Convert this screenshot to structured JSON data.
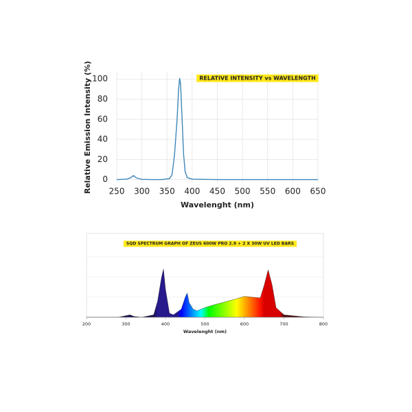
{
  "chart_data": [
    {
      "type": "line",
      "title": "RELATIVE INTENSITY vs WAVELENGTH",
      "x_label": "Wavelenght (nm)",
      "y_label": "Relative Emission Intensity (%)",
      "x": [
        250,
        270,
        278,
        283,
        290,
        300,
        320,
        340,
        355,
        360,
        365,
        370,
        373,
        375,
        377,
        380,
        383,
        386,
        390,
        400,
        450,
        500,
        550,
        600,
        650
      ],
      "values": [
        0,
        0.5,
        2,
        4,
        1.5,
        0.3,
        0,
        0,
        1,
        5,
        25,
        60,
        90,
        101,
        95,
        60,
        25,
        8,
        2,
        0.5,
        0,
        0,
        0,
        0,
        0
      ],
      "color": "#3d86b8",
      "xlim": [
        250,
        650
      ],
      "xticks": [
        250,
        300,
        350,
        400,
        450,
        500,
        550,
        600,
        650
      ],
      "ylim": [
        -3,
        107
      ],
      "yticks": [
        0,
        20,
        40,
        60,
        80,
        100
      ],
      "grid": true
    },
    {
      "type": "area",
      "title": "SQD SPECTRUM GRAPH OF ZEUS 600W PRO 2.9 + 2 X 30W UV LED BARS",
      "x_label": "Wavelenght (nm)",
      "x": [
        200,
        280,
        300,
        310,
        320,
        340,
        370,
        380,
        390,
        395,
        400,
        410,
        420,
        440,
        450,
        455,
        460,
        470,
        480,
        500,
        520,
        550,
        580,
        600,
        620,
        640,
        650,
        660,
        670,
        680,
        700,
        750,
        800
      ],
      "values": [
        0,
        0,
        2,
        3,
        1,
        0,
        3,
        20,
        50,
        60,
        35,
        5,
        3,
        10,
        25,
        30,
        18,
        10,
        8,
        12,
        15,
        19,
        23,
        26,
        25,
        24,
        40,
        59,
        40,
        12,
        3,
        0.5,
        0
      ],
      "fill": "spectrum",
      "xlim": [
        200,
        800
      ],
      "xticks": [
        200,
        300,
        400,
        500,
        600,
        700,
        800
      ],
      "ylim": [
        0,
        100
      ]
    }
  ]
}
